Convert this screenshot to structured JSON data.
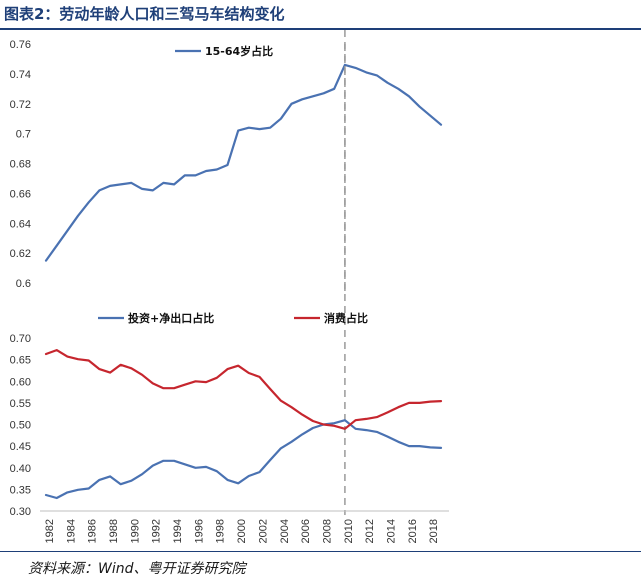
{
  "header": {
    "title": "图表2：劳动年龄人口和三驾马车结构变化"
  },
  "footer": {
    "source": "资料来源：Wind、粤开证券研究院"
  },
  "chart_data": [
    {
      "type": "line",
      "years": [
        1982,
        1983,
        1984,
        1985,
        1986,
        1987,
        1988,
        1989,
        1990,
        1991,
        1992,
        1993,
        1994,
        1995,
        1996,
        1997,
        1998,
        1999,
        2000,
        2001,
        2002,
        2003,
        2004,
        2005,
        2006,
        2007,
        2008,
        2009,
        2010,
        2011,
        2012,
        2013,
        2014,
        2015,
        2016,
        2017,
        2018,
        2019
      ],
      "series": [
        {
          "name": "15-64岁占比",
          "color": "#4a72b2",
          "values": [
            0.615,
            0.625,
            0.635,
            0.645,
            0.654,
            0.662,
            0.665,
            0.666,
            0.667,
            0.663,
            0.662,
            0.667,
            0.666,
            0.672,
            0.672,
            0.675,
            0.676,
            0.679,
            0.702,
            0.704,
            0.703,
            0.704,
            0.71,
            0.72,
            0.723,
            0.725,
            0.727,
            0.73,
            0.746,
            0.744,
            0.741,
            0.739,
            0.734,
            0.73,
            0.725,
            0.718,
            0.712,
            0.706
          ]
        }
      ],
      "xticks": [],
      "yticks": [
        "0.76",
        "0.74",
        "0.72",
        "0.7",
        "0.68",
        "0.66",
        "0.64",
        "0.62",
        "0.6"
      ],
      "ylim": [
        0.6,
        0.76
      ],
      "vline_year": 2010
    },
    {
      "type": "line",
      "years": [
        1982,
        1983,
        1984,
        1985,
        1986,
        1987,
        1988,
        1989,
        1990,
        1991,
        1992,
        1993,
        1994,
        1995,
        1996,
        1997,
        1998,
        1999,
        2000,
        2001,
        2002,
        2003,
        2004,
        2005,
        2006,
        2007,
        2008,
        2009,
        2010,
        2011,
        2012,
        2013,
        2014,
        2015,
        2016,
        2017,
        2018,
        2019
      ],
      "series": [
        {
          "name": "投资+净出口占比",
          "color": "#4a72b2",
          "values": [
            0.337,
            0.33,
            0.343,
            0.349,
            0.352,
            0.372,
            0.38,
            0.362,
            0.37,
            0.385,
            0.405,
            0.416,
            0.416,
            0.408,
            0.4,
            0.402,
            0.392,
            0.372,
            0.364,
            0.381,
            0.39,
            0.418,
            0.445,
            0.46,
            0.477,
            0.492,
            0.5,
            0.503,
            0.51,
            0.49,
            0.487,
            0.483,
            0.472,
            0.46,
            0.45,
            0.45,
            0.447,
            0.446
          ]
        },
        {
          "name": "消费占比",
          "color": "#c6262e",
          "values": [
            0.663,
            0.672,
            0.657,
            0.651,
            0.648,
            0.628,
            0.62,
            0.638,
            0.63,
            0.615,
            0.595,
            0.584,
            0.584,
            0.592,
            0.6,
            0.598,
            0.608,
            0.628,
            0.636,
            0.619,
            0.61,
            0.582,
            0.555,
            0.54,
            0.523,
            0.508,
            0.5,
            0.497,
            0.49,
            0.51,
            0.513,
            0.517,
            0.528,
            0.54,
            0.55,
            0.55,
            0.553,
            0.554
          ]
        }
      ],
      "xticks": [
        "1982",
        "1984",
        "1986",
        "1988",
        "1990",
        "1992",
        "1994",
        "1996",
        "1998",
        "2000",
        "2002",
        "2004",
        "2006",
        "2008",
        "2010",
        "2012",
        "2014",
        "2016",
        "2018"
      ],
      "yticks": [
        "0.70",
        "0.65",
        "0.60",
        "0.55",
        "0.50",
        "0.45",
        "0.40",
        "0.35",
        "0.30"
      ],
      "ylim": [
        0.3,
        0.7
      ],
      "vline_year": 2010
    }
  ]
}
